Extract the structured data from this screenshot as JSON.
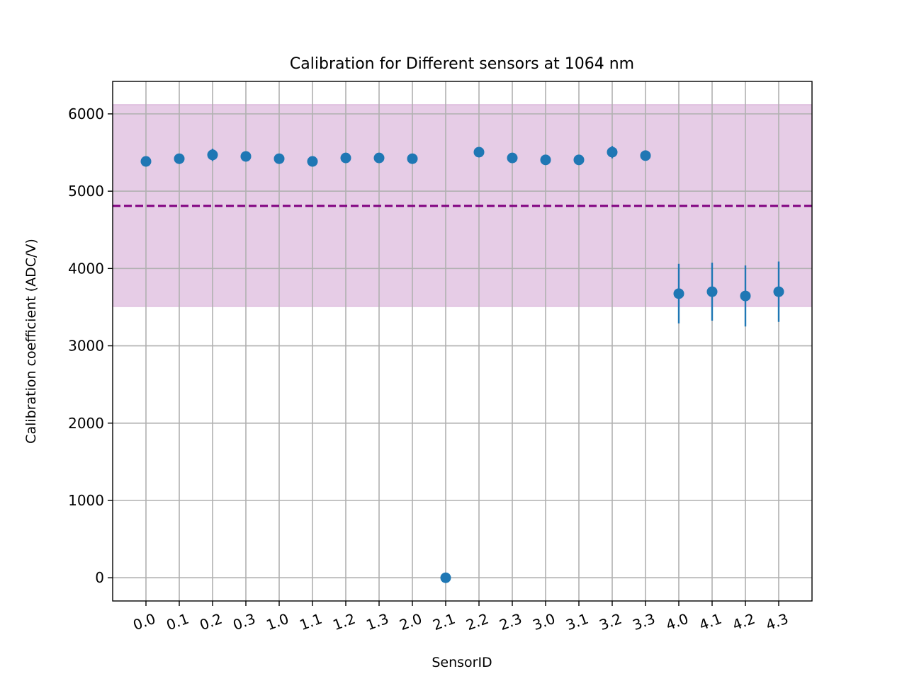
{
  "chart_data": {
    "type": "scatter",
    "title": "Calibration for Different sensors at 1064 nm",
    "xlabel": "SensorID",
    "ylabel": "Calibration coefficient (ADC/V)",
    "categories": [
      "0.0",
      "0.1",
      "0.2",
      "0.3",
      "1.0",
      "1.1",
      "1.2",
      "1.3",
      "2.0",
      "2.1",
      "2.2",
      "2.3",
      "3.0",
      "3.1",
      "3.2",
      "3.3",
      "4.0",
      "4.1",
      "4.2",
      "4.3"
    ],
    "values": [
      5385,
      5420,
      5470,
      5450,
      5420,
      5385,
      5430,
      5430,
      5420,
      0,
      5505,
      5430,
      5405,
      5405,
      5505,
      5460,
      3675,
      3700,
      3645,
      3700
    ],
    "errors": [
      40,
      40,
      80,
      60,
      40,
      40,
      60,
      60,
      40,
      0,
      60,
      40,
      40,
      40,
      80,
      60,
      385,
      375,
      395,
      390
    ],
    "ylim": [
      -300,
      6420
    ],
    "yticks": [
      0,
      1000,
      2000,
      3000,
      4000,
      5000,
      6000
    ],
    "xtick_rotation": -20,
    "reference_line": {
      "value": 4810,
      "style": "dashed",
      "color": "#800080"
    },
    "reference_band": {
      "low": 3510,
      "high": 6120,
      "color": "#800080",
      "opacity": 0.2
    },
    "grid": true,
    "marker_color": "#1f77b4"
  }
}
